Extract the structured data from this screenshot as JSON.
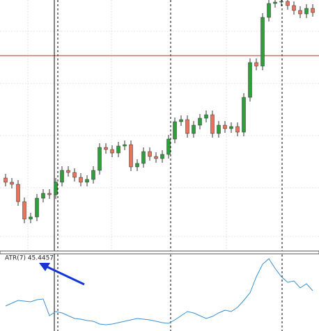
{
  "chart_data": [
    {
      "type": "candlestick",
      "ylim": [
        0,
        360
      ],
      "up_color": "#2e9e3a",
      "down_color": "#e8735a",
      "open": [
        104,
        98,
        95,
        70,
        45,
        48,
        75,
        82,
        80,
        98,
        115,
        112,
        105,
        98,
        102,
        115,
        148,
        145,
        140,
        150,
        152,
        120,
        125,
        142,
        135,
        132,
        138,
        160,
        185,
        188,
        168,
        180,
        190,
        195,
        168,
        180,
        175,
        178,
        170,
        220,
        270,
        265,
        335,
        355,
        357,
        358,
        352,
        345,
        340,
        348
      ],
      "high": [
        110,
        104,
        101,
        76,
        54,
        81,
        88,
        88,
        104,
        121,
        121,
        118,
        111,
        108,
        121,
        154,
        154,
        151,
        156,
        158,
        158,
        131,
        148,
        148,
        141,
        144,
        166,
        191,
        194,
        194,
        186,
        196,
        201,
        201,
        186,
        186,
        184,
        184,
        226,
        276,
        276,
        341,
        361,
        363,
        364,
        364,
        358,
        351,
        354,
        354
      ],
      "low": [
        92,
        89,
        64,
        39,
        39,
        42,
        69,
        74,
        74,
        92,
        106,
        99,
        92,
        92,
        96,
        109,
        139,
        134,
        134,
        144,
        114,
        114,
        119,
        129,
        126,
        126,
        132,
        154,
        179,
        162,
        162,
        174,
        184,
        162,
        162,
        169,
        169,
        164,
        164,
        214,
        259,
        259,
        329,
        349,
        351,
        346,
        339,
        334,
        334,
        336
      ],
      "close": [
        98,
        95,
        70,
        45,
        48,
        75,
        82,
        80,
        98,
        115,
        112,
        105,
        98,
        102,
        115,
        148,
        145,
        140,
        150,
        152,
        120,
        125,
        142,
        135,
        132,
        138,
        160,
        185,
        188,
        168,
        180,
        190,
        195,
        168,
        180,
        175,
        178,
        170,
        220,
        270,
        265,
        335,
        355,
        357,
        358,
        352,
        345,
        340,
        348,
        342
      ]
    },
    {
      "type": "line",
      "title": "ATR(7) 45.4457",
      "ylim": [
        0,
        111
      ],
      "color": "#3a8fd0",
      "values": [
        36,
        40,
        44,
        43,
        42,
        45,
        46,
        22,
        28,
        26,
        22,
        18,
        17,
        15,
        14,
        10,
        9,
        10,
        12,
        14,
        16,
        18,
        17,
        16,
        14,
        12,
        11,
        16,
        22,
        28,
        26,
        22,
        18,
        21,
        26,
        30,
        28,
        34,
        44,
        55,
        78,
        96,
        104,
        90,
        78,
        70,
        72,
        62,
        68,
        58
      ]
    }
  ]
}
